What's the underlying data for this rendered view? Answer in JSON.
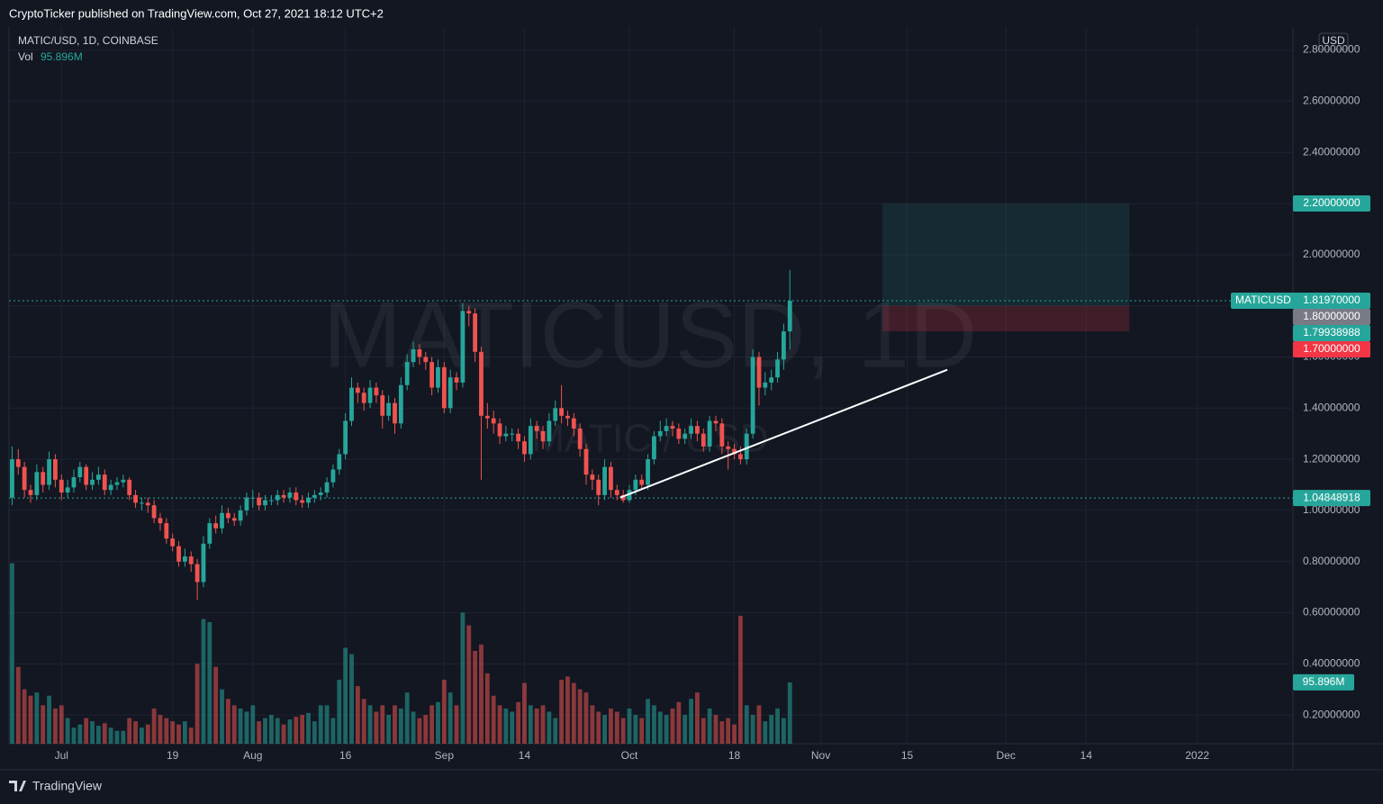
{
  "header": {
    "text": "CryptoTicker published on TradingView.com, Oct 27, 2021 18:12 UTC+2"
  },
  "footer": {
    "brand": "TradingView"
  },
  "chart_data": {
    "type": "candlestick",
    "legend": {
      "symbol": "MATIC/USD, 1D, COINBASE",
      "volume_label": "Vol"
    },
    "watermark": "MATICUSD, 1D",
    "watermark_sub": "MATIC / USD",
    "currency": "USD",
    "colors": {
      "up": "#26a69a",
      "down": "#ef5350"
    },
    "ohlc": [
      [
        1.05,
        1.25,
        1.02,
        1.2
      ],
      [
        1.2,
        1.24,
        1.14,
        1.17
      ],
      [
        1.17,
        1.19,
        1.05,
        1.08
      ],
      [
        1.08,
        1.1,
        1.03,
        1.06
      ],
      [
        1.06,
        1.18,
        1.04,
        1.15
      ],
      [
        1.15,
        1.17,
        1.07,
        1.1
      ],
      [
        1.1,
        1.23,
        1.08,
        1.2
      ],
      [
        1.2,
        1.22,
        1.09,
        1.12
      ],
      [
        1.12,
        1.14,
        1.04,
        1.07
      ],
      [
        1.07,
        1.12,
        1.05,
        1.09
      ],
      [
        1.09,
        1.16,
        1.07,
        1.13
      ],
      [
        1.13,
        1.19,
        1.11,
        1.17
      ],
      [
        1.17,
        1.18,
        1.08,
        1.1
      ],
      [
        1.1,
        1.15,
        1.08,
        1.12
      ],
      [
        1.12,
        1.17,
        1.1,
        1.14
      ],
      [
        1.14,
        1.16,
        1.06,
        1.08
      ],
      [
        1.08,
        1.12,
        1.06,
        1.1
      ],
      [
        1.1,
        1.13,
        1.08,
        1.11
      ],
      [
        1.11,
        1.14,
        1.09,
        1.12
      ],
      [
        1.12,
        1.13,
        1.04,
        1.06
      ],
      [
        1.06,
        1.08,
        1.01,
        1.03
      ],
      [
        1.03,
        1.05,
        1.0,
        1.03
      ],
      [
        1.03,
        1.05,
        0.99,
        1.02
      ],
      [
        1.02,
        1.04,
        0.95,
        0.97
      ],
      [
        0.97,
        0.99,
        0.92,
        0.95
      ],
      [
        0.95,
        0.97,
        0.87,
        0.89
      ],
      [
        0.89,
        0.91,
        0.84,
        0.86
      ],
      [
        0.86,
        0.88,
        0.78,
        0.8
      ],
      [
        0.8,
        0.85,
        0.78,
        0.82
      ],
      [
        0.82,
        0.84,
        0.76,
        0.79
      ],
      [
        0.79,
        0.81,
        0.65,
        0.72
      ],
      [
        0.72,
        0.9,
        0.7,
        0.87
      ],
      [
        0.87,
        0.97,
        0.85,
        0.95
      ],
      [
        0.95,
        0.98,
        0.91,
        0.93
      ],
      [
        0.93,
        1.02,
        0.91,
        0.99
      ],
      [
        0.99,
        1.01,
        0.95,
        0.97
      ],
      [
        0.97,
        0.99,
        0.94,
        0.96
      ],
      [
        0.96,
        1.02,
        0.94,
        1.0
      ],
      [
        1.0,
        1.07,
        0.98,
        1.05
      ],
      [
        1.05,
        1.08,
        1.01,
        1.05
      ],
      [
        1.05,
        1.07,
        1.0,
        1.02
      ],
      [
        1.02,
        1.06,
        1.0,
        1.04
      ],
      [
        1.04,
        1.06,
        1.02,
        1.04
      ],
      [
        1.04,
        1.08,
        1.02,
        1.06
      ],
      [
        1.06,
        1.08,
        1.03,
        1.05
      ],
      [
        1.05,
        1.09,
        1.03,
        1.07
      ],
      [
        1.07,
        1.09,
        1.02,
        1.04
      ],
      [
        1.04,
        1.06,
        1.01,
        1.03
      ],
      [
        1.03,
        1.07,
        1.01,
        1.05
      ],
      [
        1.05,
        1.08,
        1.03,
        1.06
      ],
      [
        1.06,
        1.09,
        1.04,
        1.07
      ],
      [
        1.07,
        1.13,
        1.05,
        1.11
      ],
      [
        1.11,
        1.18,
        1.09,
        1.16
      ],
      [
        1.16,
        1.24,
        1.14,
        1.22
      ],
      [
        1.22,
        1.38,
        1.2,
        1.35
      ],
      [
        1.35,
        1.52,
        1.33,
        1.48
      ],
      [
        1.48,
        1.5,
        1.42,
        1.46
      ],
      [
        1.46,
        1.48,
        1.39,
        1.42
      ],
      [
        1.42,
        1.51,
        1.4,
        1.48
      ],
      [
        1.48,
        1.5,
        1.42,
        1.45
      ],
      [
        1.45,
        1.47,
        1.32,
        1.37
      ],
      [
        1.37,
        1.45,
        1.35,
        1.42
      ],
      [
        1.42,
        1.44,
        1.3,
        1.34
      ],
      [
        1.34,
        1.52,
        1.32,
        1.49
      ],
      [
        1.49,
        1.61,
        1.47,
        1.58
      ],
      [
        1.58,
        1.66,
        1.56,
        1.63
      ],
      [
        1.63,
        1.65,
        1.57,
        1.6
      ],
      [
        1.6,
        1.62,
        1.55,
        1.58
      ],
      [
        1.58,
        1.6,
        1.45,
        1.48
      ],
      [
        1.48,
        1.59,
        1.46,
        1.56
      ],
      [
        1.56,
        1.58,
        1.38,
        1.4
      ],
      [
        1.4,
        1.55,
        1.38,
        1.52
      ],
      [
        1.52,
        1.54,
        1.47,
        1.5
      ],
      [
        1.5,
        1.81,
        1.48,
        1.78
      ],
      [
        1.78,
        1.8,
        1.72,
        1.77
      ],
      [
        1.77,
        1.79,
        1.58,
        1.62
      ],
      [
        1.62,
        1.64,
        1.12,
        1.37
      ],
      [
        1.37,
        1.42,
        1.32,
        1.36
      ],
      [
        1.36,
        1.39,
        1.3,
        1.34
      ],
      [
        1.34,
        1.36,
        1.26,
        1.29
      ],
      [
        1.29,
        1.33,
        1.27,
        1.3
      ],
      [
        1.3,
        1.32,
        1.27,
        1.3
      ],
      [
        1.3,
        1.32,
        1.24,
        1.27
      ],
      [
        1.27,
        1.29,
        1.19,
        1.22
      ],
      [
        1.22,
        1.36,
        1.2,
        1.33
      ],
      [
        1.33,
        1.35,
        1.28,
        1.31
      ],
      [
        1.31,
        1.33,
        1.24,
        1.27
      ],
      [
        1.27,
        1.38,
        1.25,
        1.35
      ],
      [
        1.35,
        1.43,
        1.33,
        1.4
      ],
      [
        1.4,
        1.49,
        1.34,
        1.37
      ],
      [
        1.37,
        1.39,
        1.33,
        1.36
      ],
      [
        1.36,
        1.38,
        1.29,
        1.32
      ],
      [
        1.32,
        1.34,
        1.21,
        1.24
      ],
      [
        1.24,
        1.26,
        1.1,
        1.14
      ],
      [
        1.14,
        1.16,
        1.08,
        1.12
      ],
      [
        1.12,
        1.14,
        1.02,
        1.06
      ],
      [
        1.06,
        1.2,
        1.04,
        1.17
      ],
      [
        1.17,
        1.19,
        1.05,
        1.08
      ],
      [
        1.08,
        1.1,
        1.04,
        1.06
      ],
      [
        1.06,
        1.08,
        1.03,
        1.04
      ],
      [
        1.04,
        1.1,
        1.03,
        1.08
      ],
      [
        1.08,
        1.14,
        1.06,
        1.12
      ],
      [
        1.12,
        1.14,
        1.08,
        1.1
      ],
      [
        1.1,
        1.22,
        1.08,
        1.2
      ],
      [
        1.2,
        1.31,
        1.18,
        1.29
      ],
      [
        1.29,
        1.35,
        1.27,
        1.31
      ],
      [
        1.31,
        1.36,
        1.29,
        1.33
      ],
      [
        1.33,
        1.35,
        1.29,
        1.32
      ],
      [
        1.32,
        1.34,
        1.26,
        1.28
      ],
      [
        1.28,
        1.32,
        1.26,
        1.3
      ],
      [
        1.3,
        1.36,
        1.28,
        1.33
      ],
      [
        1.33,
        1.35,
        1.27,
        1.3
      ],
      [
        1.3,
        1.32,
        1.23,
        1.25
      ],
      [
        1.25,
        1.37,
        1.23,
        1.35
      ],
      [
        1.35,
        1.37,
        1.31,
        1.34
      ],
      [
        1.34,
        1.36,
        1.22,
        1.25
      ],
      [
        1.25,
        1.27,
        1.16,
        1.24
      ],
      [
        1.24,
        1.26,
        1.2,
        1.22
      ],
      [
        1.22,
        1.25,
        1.18,
        1.2
      ],
      [
        1.2,
        1.32,
        1.18,
        1.3
      ],
      [
        1.3,
        1.63,
        1.28,
        1.6
      ],
      [
        1.6,
        1.62,
        1.41,
        1.48
      ],
      [
        1.48,
        1.54,
        1.45,
        1.5
      ],
      [
        1.5,
        1.55,
        1.47,
        1.52
      ],
      [
        1.52,
        1.62,
        1.5,
        1.59
      ],
      [
        1.59,
        1.73,
        1.55,
        1.7
      ],
      [
        1.7,
        1.94,
        1.63,
        1.8197
      ]
    ],
    "volume": [
      282,
      120,
      85,
      75,
      80,
      60,
      75,
      55,
      60,
      40,
      25,
      30,
      40,
      35,
      28,
      32,
      25,
      20,
      20,
      40,
      35,
      25,
      30,
      55,
      45,
      40,
      35,
      30,
      35,
      25,
      125,
      195,
      190,
      120,
      85,
      70,
      60,
      55,
      50,
      60,
      35,
      40,
      45,
      40,
      30,
      38,
      42,
      45,
      48,
      35,
      60,
      60,
      40,
      100,
      150,
      140,
      90,
      70,
      60,
      50,
      60,
      45,
      60,
      55,
      80,
      50,
      40,
      45,
      60,
      65,
      100,
      80,
      60,
      205,
      185,
      145,
      155,
      110,
      75,
      60,
      55,
      50,
      65,
      95,
      60,
      55,
      60,
      50,
      40,
      100,
      105,
      95,
      85,
      80,
      60,
      50,
      45,
      55,
      50,
      40,
      55,
      45,
      40,
      70,
      60,
      50,
      45,
      55,
      65,
      45,
      70,
      80,
      40,
      55,
      45,
      35,
      40,
      30,
      200,
      60,
      45,
      60,
      35,
      45,
      55,
      40,
      95.896
    ],
    "last_volume": {
      "value": 95.896,
      "label": "95.896M"
    },
    "volume_lim": [
      0,
      290
    ],
    "xlim": [
      -0.5,
      207.5
    ],
    "xticks": [
      {
        "value": 8,
        "label": "Jul"
      },
      {
        "value": 26,
        "label": "19"
      },
      {
        "value": 39,
        "label": "Aug"
      },
      {
        "value": 54,
        "label": "16"
      },
      {
        "value": 70,
        "label": "Sep"
      },
      {
        "value": 83,
        "label": "14"
      },
      {
        "value": 100,
        "label": "Oct"
      },
      {
        "value": 117,
        "label": "18"
      },
      {
        "value": 131,
        "label": "Nov"
      },
      {
        "value": 145,
        "label": "15"
      },
      {
        "value": 161,
        "label": "Dec"
      },
      {
        "value": 174,
        "label": "14"
      },
      {
        "value": 192,
        "label": "2022"
      }
    ],
    "ylim": [
      0.088,
      2.89
    ],
    "yticks": [
      {
        "value": 0.2,
        "label": "0.20000000"
      },
      {
        "value": 0.4,
        "label": "0.40000000"
      },
      {
        "value": 0.6,
        "label": "0.60000000"
      },
      {
        "value": 0.8,
        "label": "0.80000000"
      },
      {
        "value": 1.0,
        "label": "1.00000000"
      },
      {
        "value": 1.2,
        "label": "1.20000000"
      },
      {
        "value": 1.4,
        "label": "1.40000000"
      },
      {
        "value": 1.6,
        "label": "1.60000000"
      },
      {
        "value": 1.8,
        "label": "1.80000000"
      },
      {
        "value": 2.0,
        "label": "2.00000000"
      },
      {
        "value": 2.2,
        "label": "2.20000000"
      },
      {
        "value": 2.4,
        "label": "2.40000000"
      },
      {
        "value": 2.6,
        "label": "2.60000000"
      },
      {
        "value": 2.8,
        "label": "2.80000000"
      }
    ],
    "grid": true,
    "price_lines": [
      {
        "name": "MATICUSD",
        "value": 1.8197,
        "label": "1.81970000",
        "color": "#26a69a"
      },
      {
        "value": 1.04848918,
        "label": "1.04848918",
        "color": "#26a69a"
      }
    ],
    "position": {
      "x": [
        141,
        181
      ],
      "target": {
        "value": 2.2,
        "label": "2.20000000",
        "color": "#26a69a"
      },
      "entry": {
        "value": 1.8,
        "label": "1.80000000",
        "color": "#787b86"
      },
      "stop": {
        "value": 1.7,
        "label": "1.70000000",
        "color": "#f23645"
      }
    },
    "price_label": {
      "value": 1.79938988,
      "label": "1.79938988",
      "color": "#26a69a"
    },
    "trendline": {
      "x": [
        98.5,
        151.5
      ],
      "y": [
        1.05,
        1.55
      ],
      "color": "#ffffff"
    }
  }
}
